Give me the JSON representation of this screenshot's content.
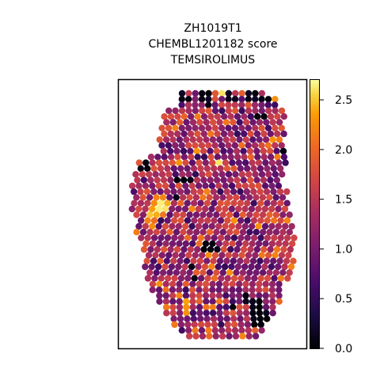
{
  "chart_data": {
    "type": "scatter",
    "title_lines": [
      "ZH1019T1",
      "CHEMBL1201182 score",
      "TEMSIROLIMUS"
    ],
    "xlabel": "",
    "ylabel": "",
    "colorbar": {
      "colormap": "inferno",
      "range": [
        0.0,
        2.7
      ],
      "ticks": [
        0.0,
        0.5,
        1.0,
        1.5,
        2.0,
        2.5
      ],
      "tick_labels": [
        "0.0",
        "0.5",
        "1.0",
        "1.5",
        "2.0",
        "2.5"
      ]
    },
    "axes_visible": false,
    "grid": false,
    "note_points": "spot-level scores on a hexagonal tissue grid; approximate spatial pattern",
    "point_summary": {
      "value_min": 0.0,
      "value_max": 2.7,
      "typical_value": 1.2
    }
  }
}
